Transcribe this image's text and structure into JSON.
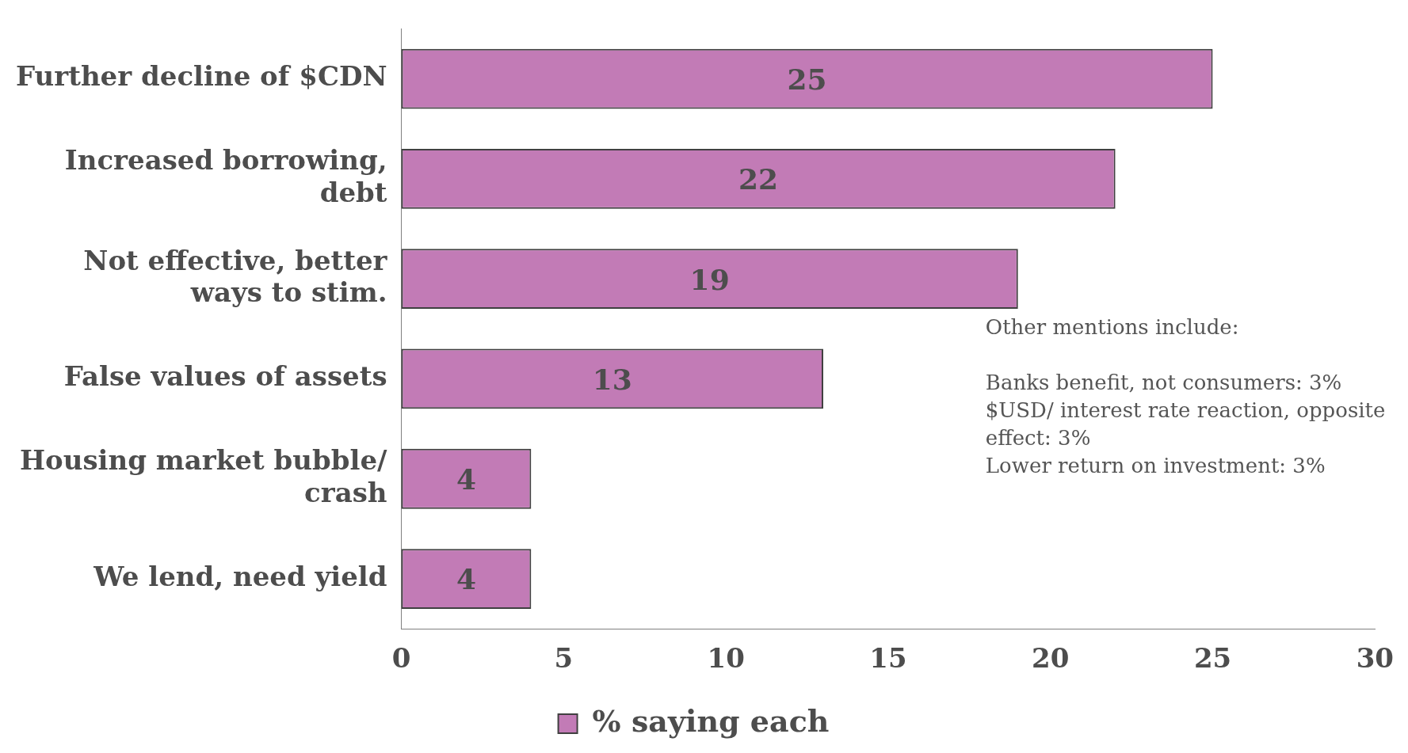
{
  "chart_data": {
    "type": "bar",
    "orientation": "horizontal",
    "categories": [
      "Further decline of $CDN",
      "Increased borrowing, debt",
      "Not effective, better ways to stim.",
      "False values of assets",
      "Housing market bubble/ crash",
      "We lend, need yield"
    ],
    "series": [
      {
        "name": "% saying each",
        "color": "#c27bb6",
        "values": [
          25,
          22,
          19,
          13,
          4,
          4
        ]
      }
    ],
    "xlim": [
      0,
      30
    ],
    "xticks": [
      0,
      5,
      10,
      15,
      20,
      25,
      30
    ],
    "grid": false,
    "legend": "bottom",
    "data_labels": true,
    "annotations": [
      "Other mentions include:",
      "Banks benefit, not consumers: 3%",
      "$USD/ interest rate reaction, opposite effect: 3%",
      "Lower return on investment: 3%"
    ]
  }
}
